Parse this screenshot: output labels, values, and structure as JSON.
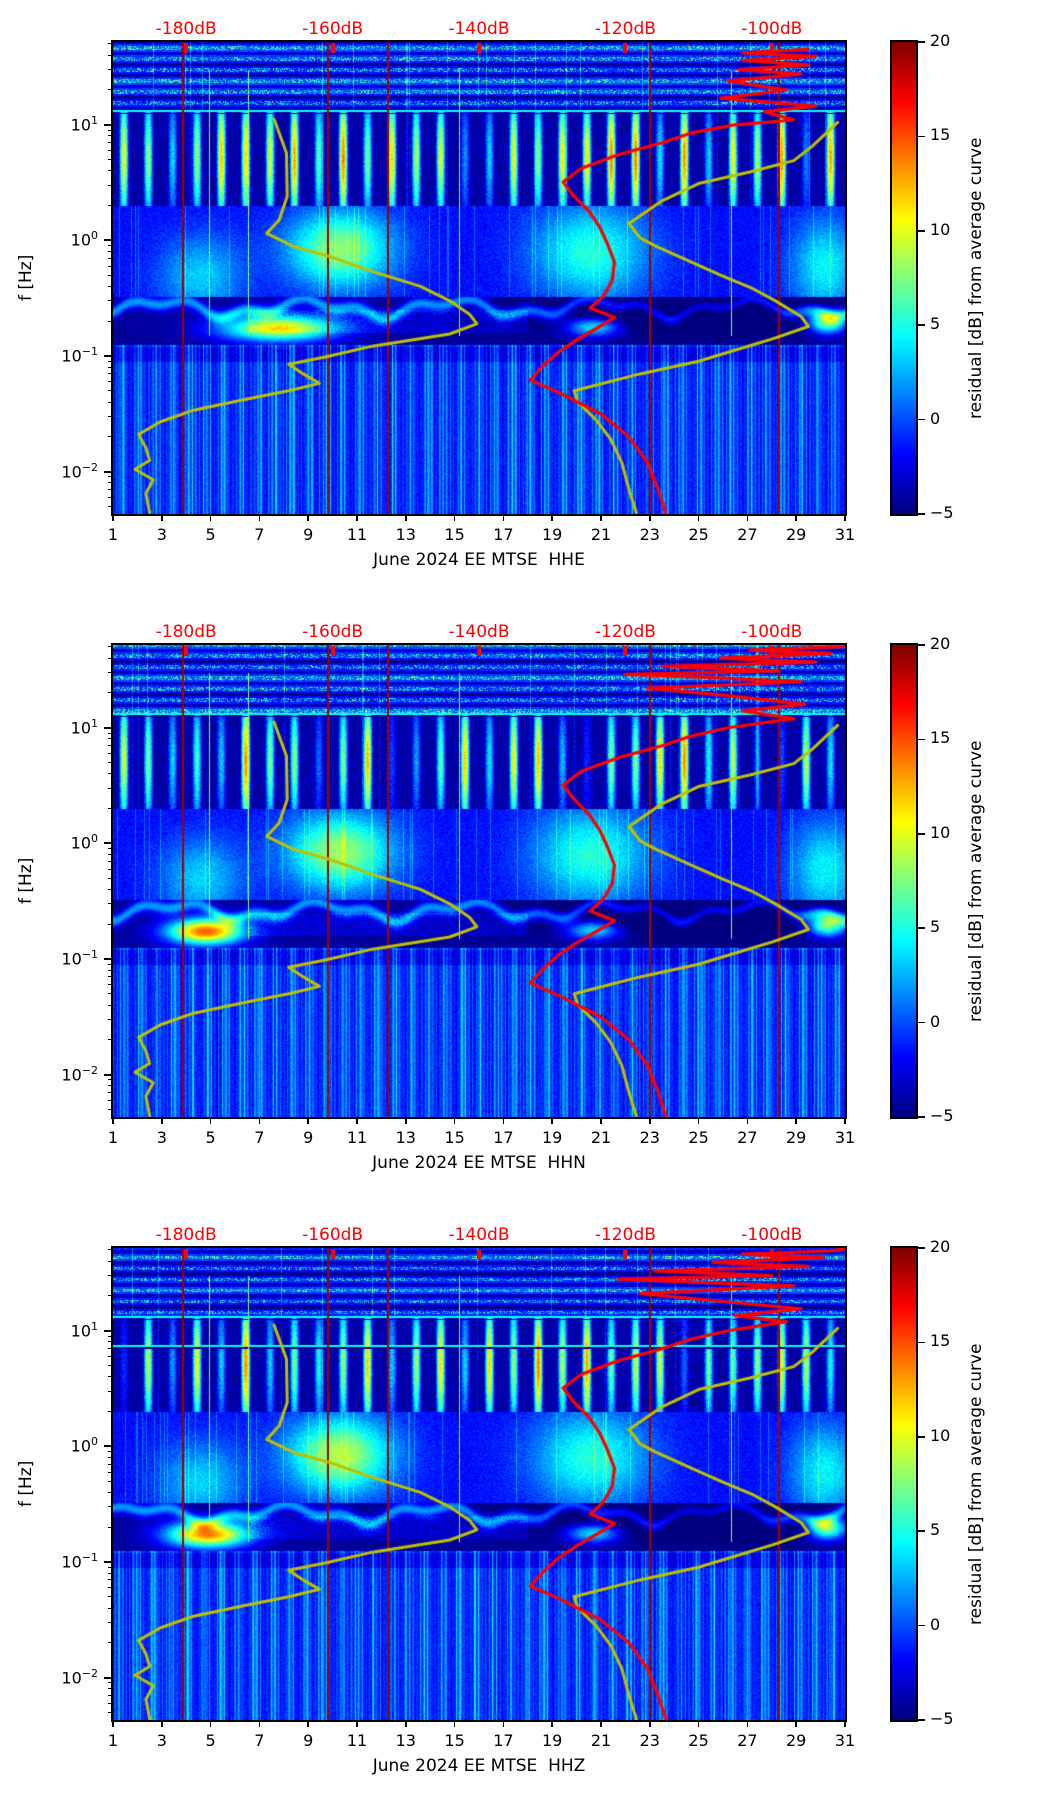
{
  "chart_data": {
    "type": "heatmap",
    "subtype": "spectrogram-residual",
    "panels": [
      {
        "xlabel": "June 2024 EE MTSE  HHE",
        "month": "June 2024",
        "network": "EE",
        "station": "MTSE",
        "channel": "HHE",
        "seed": 11,
        "microseism_blob": {
          "day": 7.8,
          "sigma_day": 1.7,
          "amp": 14.5
        },
        "cloud_amp": 9.5,
        "hlines_hz": [
          13.2
        ],
        "red_curve_hz_db": [
          [
            45,
            -95
          ],
          [
            42,
            -104
          ],
          [
            39,
            -94
          ],
          [
            36,
            -104
          ],
          [
            33,
            -95
          ],
          [
            30,
            -104.5
          ],
          [
            27.5,
            -96
          ],
          [
            24,
            -106
          ],
          [
            20,
            -98
          ],
          [
            17,
            -107
          ],
          [
            14.5,
            -94
          ],
          [
            13,
            -101
          ],
          [
            11,
            -97
          ],
          [
            10,
            -105
          ],
          [
            8.5,
            -111
          ],
          [
            7,
            -115
          ],
          [
            5.5,
            -121
          ],
          [
            4.2,
            -126
          ],
          [
            3.2,
            -128.5
          ],
          [
            2.4,
            -127
          ],
          [
            1.8,
            -125
          ],
          [
            1.3,
            -123.5
          ],
          [
            0.95,
            -122.5
          ],
          [
            0.65,
            -121.5
          ],
          [
            0.45,
            -121.8
          ],
          [
            0.33,
            -123
          ],
          [
            0.26,
            -124.8
          ],
          [
            0.215,
            -121.5
          ],
          [
            0.18,
            -123.5
          ],
          [
            0.14,
            -126.5
          ],
          [
            0.11,
            -129
          ],
          [
            0.085,
            -131
          ],
          [
            0.062,
            -133
          ],
          [
            0.048,
            -129
          ],
          [
            0.032,
            -123.5
          ],
          [
            0.02,
            -119.5
          ],
          [
            0.012,
            -117
          ],
          [
            0.007,
            -115.5
          ],
          [
            0.0044,
            -114.5
          ]
        ]
      },
      {
        "xlabel": "June 2024 EE MTSE  HHN",
        "month": "June 2024",
        "network": "EE",
        "station": "MTSE",
        "channel": "HHN",
        "seed": 23,
        "microseism_blob": {
          "day": 4.8,
          "sigma_day": 1.1,
          "amp": 19
        },
        "cloud_amp": 10,
        "hlines_hz": [
          13.2
        ],
        "red_curve_hz_db": [
          [
            52,
            -89.5
          ],
          [
            50,
            -91
          ],
          [
            47,
            -103
          ],
          [
            44,
            -92
          ],
          [
            40,
            -107
          ],
          [
            37,
            -94
          ],
          [
            34,
            -115
          ],
          [
            31,
            -99
          ],
          [
            29,
            -120
          ],
          [
            27,
            -107
          ],
          [
            25,
            -96
          ],
          [
            22,
            -117
          ],
          [
            19,
            -106
          ],
          [
            16,
            -95.5
          ],
          [
            14,
            -104
          ],
          [
            12,
            -97
          ],
          [
            10,
            -106
          ],
          [
            8.5,
            -111
          ],
          [
            7,
            -115
          ],
          [
            5.5,
            -121
          ],
          [
            4.2,
            -126
          ],
          [
            3.2,
            -128.5
          ],
          [
            2.4,
            -127
          ],
          [
            1.8,
            -125
          ],
          [
            1.3,
            -123.5
          ],
          [
            0.95,
            -122.5
          ],
          [
            0.65,
            -121.5
          ],
          [
            0.45,
            -121.8
          ],
          [
            0.33,
            -123
          ],
          [
            0.26,
            -124.8
          ],
          [
            0.215,
            -121.5
          ],
          [
            0.18,
            -123.5
          ],
          [
            0.14,
            -126.5
          ],
          [
            0.11,
            -129
          ],
          [
            0.085,
            -131
          ],
          [
            0.062,
            -133
          ],
          [
            0.048,
            -129
          ],
          [
            0.032,
            -123.5
          ],
          [
            0.02,
            -119.5
          ],
          [
            0.012,
            -117
          ],
          [
            0.007,
            -115.5
          ],
          [
            0.0044,
            -114.5
          ]
        ]
      },
      {
        "xlabel": "June 2024 EE MTSE  HHZ",
        "month": "June 2024",
        "network": "EE",
        "station": "MTSE",
        "channel": "HHZ",
        "seed": 37,
        "microseism_blob": {
          "day": 4.9,
          "sigma_day": 1.2,
          "amp": 18
        },
        "cloud_amp": 10.5,
        "hlines_hz": [
          13.2,
          7.5
        ],
        "red_curve_hz_db": [
          [
            52,
            -89.5
          ],
          [
            49,
            -92
          ],
          [
            46,
            -104
          ],
          [
            43,
            -93
          ],
          [
            39,
            -108
          ],
          [
            36,
            -95
          ],
          [
            33,
            -116
          ],
          [
            30,
            -100
          ],
          [
            28,
            -121
          ],
          [
            26,
            -108
          ],
          [
            24.5,
            -97
          ],
          [
            21,
            -118
          ],
          [
            18,
            -107
          ],
          [
            15.5,
            -96
          ],
          [
            13.5,
            -105
          ],
          [
            12,
            -98
          ],
          [
            10,
            -106
          ],
          [
            8.5,
            -111
          ],
          [
            7,
            -115
          ],
          [
            5.5,
            -121
          ],
          [
            4.2,
            -126
          ],
          [
            3.2,
            -128.5
          ],
          [
            2.4,
            -127
          ],
          [
            1.8,
            -125
          ],
          [
            1.3,
            -123.5
          ],
          [
            0.95,
            -122.5
          ],
          [
            0.65,
            -121.5
          ],
          [
            0.45,
            -121.8
          ],
          [
            0.33,
            -123
          ],
          [
            0.26,
            -124.8
          ],
          [
            0.215,
            -121.5
          ],
          [
            0.18,
            -123.5
          ],
          [
            0.14,
            -126.5
          ],
          [
            0.11,
            -129
          ],
          [
            0.085,
            -131
          ],
          [
            0.062,
            -133
          ],
          [
            0.048,
            -129
          ],
          [
            0.032,
            -123.5
          ],
          [
            0.02,
            -119.5
          ],
          [
            0.012,
            -117
          ],
          [
            0.007,
            -115.5
          ],
          [
            0.0044,
            -114.5
          ]
        ]
      }
    ],
    "x_axis": {
      "range_days": [
        1,
        31
      ],
      "tick_labels": [
        "1",
        "3",
        "5",
        "7",
        "9",
        "11",
        "13",
        "15",
        "17",
        "19",
        "21",
        "23",
        "25",
        "27",
        "29",
        "31"
      ],
      "tick_values": [
        1,
        3,
        5,
        7,
        9,
        11,
        13,
        15,
        17,
        19,
        21,
        23,
        25,
        27,
        29,
        31
      ]
    },
    "y_axis": {
      "label": "f [Hz]",
      "scale": "log",
      "range_hz": [
        0.0043,
        52
      ],
      "ticks": [
        {
          "base": "10",
          "exp": "1",
          "value": 10
        },
        {
          "base": "10",
          "exp": "0",
          "value": 1
        },
        {
          "base": "10",
          "exp": "−1",
          "value": 0.1
        },
        {
          "base": "10",
          "exp": "−2",
          "value": 0.01
        }
      ]
    },
    "top_axis": {
      "color": "#ff0000",
      "labels": [
        "-180dB",
        "-160dB",
        "-140dB",
        "-120dB",
        "-100dB"
      ],
      "db_values": [
        -180,
        -160,
        -140,
        -120,
        -100
      ],
      "db_to_day": {
        "db_ref": -180,
        "day_at_ref": 4.0,
        "days_per_db": 0.3
      }
    },
    "colorbar": {
      "label": "residual [dB] from average curve",
      "range": [
        -5,
        20
      ],
      "colormap": "jet",
      "tick_labels": [
        "20",
        "15",
        "10",
        "5",
        "0",
        "−5"
      ],
      "tick_values": [
        20,
        15,
        10,
        5,
        0,
        -5
      ]
    },
    "overlay_curves": {
      "average_low_curve": {
        "color": "#bfbf00",
        "points_hz_db": [
          [
            11.2,
            -168
          ],
          [
            5.7,
            -166.3
          ],
          [
            2.4,
            -166.2
          ],
          [
            1.5,
            -167.3
          ],
          [
            1.15,
            -169
          ],
          [
            0.88,
            -165.2
          ],
          [
            0.72,
            -160.2
          ],
          [
            0.55,
            -155
          ],
          [
            0.4,
            -148
          ],
          [
            0.3,
            -144
          ],
          [
            0.23,
            -141.3
          ],
          [
            0.19,
            -140.3
          ],
          [
            0.155,
            -144
          ],
          [
            0.12,
            -155
          ],
          [
            0.098,
            -161
          ],
          [
            0.085,
            -166
          ],
          [
            0.07,
            -164
          ],
          [
            0.058,
            -161.8
          ],
          [
            0.05,
            -166
          ],
          [
            0.042,
            -172
          ],
          [
            0.034,
            -179
          ],
          [
            0.027,
            -183.5
          ],
          [
            0.021,
            -186.5
          ],
          [
            0.016,
            -185.5
          ],
          [
            0.0125,
            -185
          ],
          [
            0.0105,
            -187
          ],
          [
            0.0085,
            -184.5
          ],
          [
            0.0065,
            -185.5
          ],
          [
            0.0044,
            -185
          ]
        ]
      },
      "average_high_curve": {
        "color": "#bfbf00",
        "points_hz_db": [
          [
            10.5,
            -91
          ],
          [
            6.5,
            -94.5
          ],
          [
            4.9,
            -97
          ],
          [
            3.9,
            -103
          ],
          [
            3.1,
            -110
          ],
          [
            2.2,
            -115
          ],
          [
            1.4,
            -119.5
          ],
          [
            1.05,
            -118
          ],
          [
            0.9,
            -116
          ],
          [
            0.65,
            -111
          ],
          [
            0.5,
            -107
          ],
          [
            0.38,
            -102.5
          ],
          [
            0.3,
            -99.5
          ],
          [
            0.22,
            -96
          ],
          [
            0.18,
            -95
          ],
          [
            0.14,
            -100
          ],
          [
            0.115,
            -104.5
          ],
          [
            0.09,
            -110
          ],
          [
            0.07,
            -118
          ],
          [
            0.05,
            -127
          ],
          [
            0.04,
            -126.5
          ],
          [
            0.028,
            -124
          ],
          [
            0.019,
            -122
          ],
          [
            0.012,
            -120.5
          ],
          [
            0.007,
            -119.5
          ],
          [
            0.0044,
            -118.5
          ]
        ]
      },
      "station_red_curve_color": "#ff0000"
    },
    "event_line_days": [
      3.85,
      9.8,
      12.25,
      23.0,
      28.3
    ],
    "bright_streak_days": [
      4.95,
      6.55,
      15.2,
      26.35
    ],
    "event_line_color": "#8b0000"
  }
}
